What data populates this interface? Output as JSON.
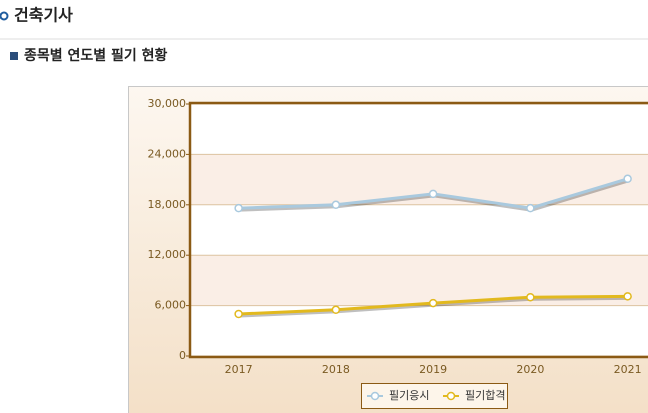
{
  "page": {
    "title": "건축기사",
    "subtitle": "종목별 연도별 필기 현황"
  },
  "chart_data": {
    "type": "line",
    "categories": [
      "2017",
      "2018",
      "2019",
      "2020",
      "2021"
    ],
    "series": [
      {
        "name": "필기응시",
        "color": "#a9c9de",
        "values": [
          17600,
          18000,
          19300,
          17600,
          21100
        ]
      },
      {
        "name": "필기합격",
        "color": "#e2b91e",
        "values": [
          5000,
          5500,
          6300,
          7000,
          7100
        ]
      }
    ],
    "ylim": [
      0,
      30000
    ],
    "yticks": [
      0,
      {
        "value": 6000,
        "label": "6,000"
      },
      {
        "value": 12000,
        "label": "12,000"
      },
      {
        "value": 18000,
        "label": "18,000"
      },
      {
        "value": 24000,
        "label": "24,000"
      },
      {
        "value": 30000,
        "label": "30,000"
      }
    ],
    "grid": true,
    "legend": "bottom"
  }
}
